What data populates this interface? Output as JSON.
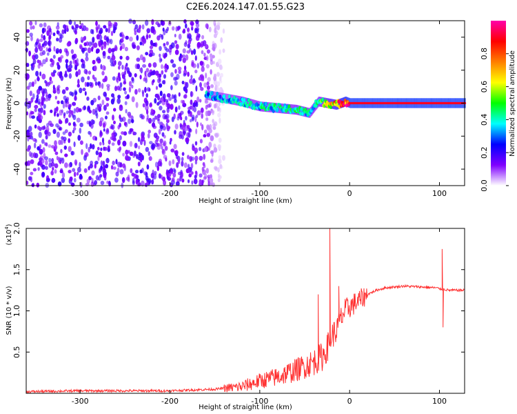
{
  "title": "C2E6.2024.147.01.55.G23",
  "chart_data": [
    {
      "type": "heatmap",
      "name": "spectrogram",
      "xlabel": "Height of straight line (km)",
      "ylabel": "Frequency (Hz)",
      "xlim": [
        -360,
        128
      ],
      "ylim": [
        -50,
        50
      ],
      "xticks": [
        -300,
        -200,
        -100,
        0,
        100
      ],
      "xtick_labels": [
        "-300",
        "-200",
        "-100",
        "0",
        "100"
      ],
      "yticks": [
        -40,
        -20,
        0,
        20,
        40
      ],
      "ytick_labels": [
        "-40",
        "-20",
        "0",
        "20",
        "40"
      ],
      "colorbar": {
        "label": "Normalized spectral amplitude",
        "range": [
          0,
          1
        ],
        "ticks": [
          0.0,
          0.2,
          0.4,
          0.6,
          0.8
        ],
        "tick_labels": [
          "0.0",
          "0.2",
          "0.4",
          "0.6",
          "0.8"
        ],
        "colormap": [
          "#ffffff",
          "#7f00ff",
          "#0000ff",
          "#00ffff",
          "#00ff00",
          "#ffff00",
          "#ff7f00",
          "#ff0000",
          "#ff00aa"
        ]
      },
      "noise_region_x": [
        -360,
        -140
      ],
      "signal_track": {
        "x": [
          -160,
          -140,
          -120,
          -100,
          -80,
          -60,
          -45,
          -35,
          -25,
          -15,
          -5,
          0,
          20,
          50,
          100,
          128
        ],
        "y": [
          5,
          3,
          1,
          -2,
          -3,
          -4,
          -6,
          1,
          0,
          -1,
          1,
          0,
          0,
          0,
          0,
          0
        ],
        "amplitude": [
          0.35,
          0.35,
          0.4,
          0.4,
          0.4,
          0.45,
          0.4,
          0.45,
          0.6,
          0.75,
          0.85,
          0.9,
          0.9,
          0.9,
          0.9,
          0.9
        ]
      },
      "colors": {
        "noise": "#7a1fe0",
        "signal_core": "#ff2020"
      }
    },
    {
      "type": "line",
      "name": "snr",
      "xlabel": "Height of straight line (km)",
      "ylabel": "SNR (10 * v/v)",
      "y_multiplier_label": "(x10",
      "y_multiplier_exp": "4",
      "y_multiplier_close": ")",
      "xlim": [
        -360,
        128
      ],
      "ylim": [
        0,
        2.0
      ],
      "xticks": [
        -300,
        -200,
        -100,
        0,
        100
      ],
      "xtick_labels": [
        "-300",
        "-200",
        "-100",
        "0",
        "100"
      ],
      "yticks": [
        0.5,
        1.0,
        1.5,
        2.0
      ],
      "ytick_labels": [
        "0.5",
        "1.0",
        "1.5",
        "2.0"
      ],
      "series": [
        {
          "color": "#ff3030",
          "x": [
            -360,
            -300,
            -200,
            -150,
            -120,
            -100,
            -80,
            -60,
            -40,
            -30,
            -25,
            -20,
            -15,
            -10,
            -5,
            0,
            10,
            20,
            30,
            40,
            60,
            80,
            95,
            100,
            103,
            106,
            110,
            128
          ],
          "y": [
            0.02,
            0.03,
            0.03,
            0.05,
            0.08,
            0.15,
            0.2,
            0.28,
            0.38,
            0.45,
            0.55,
            0.7,
            0.75,
            0.9,
            1.0,
            1.05,
            1.12,
            1.2,
            1.25,
            1.28,
            1.3,
            1.29,
            1.28,
            1.27,
            1.26,
            1.26,
            1.25,
            1.25
          ],
          "spikes": [
            {
              "x": -22,
              "y": 2.0
            },
            {
              "x": -35,
              "y": 1.2
            },
            {
              "x": -12,
              "y": 1.3
            },
            {
              "x": 103,
              "y": 1.75
            },
            {
              "x": 104,
              "y": 0.8
            }
          ]
        }
      ]
    }
  ]
}
